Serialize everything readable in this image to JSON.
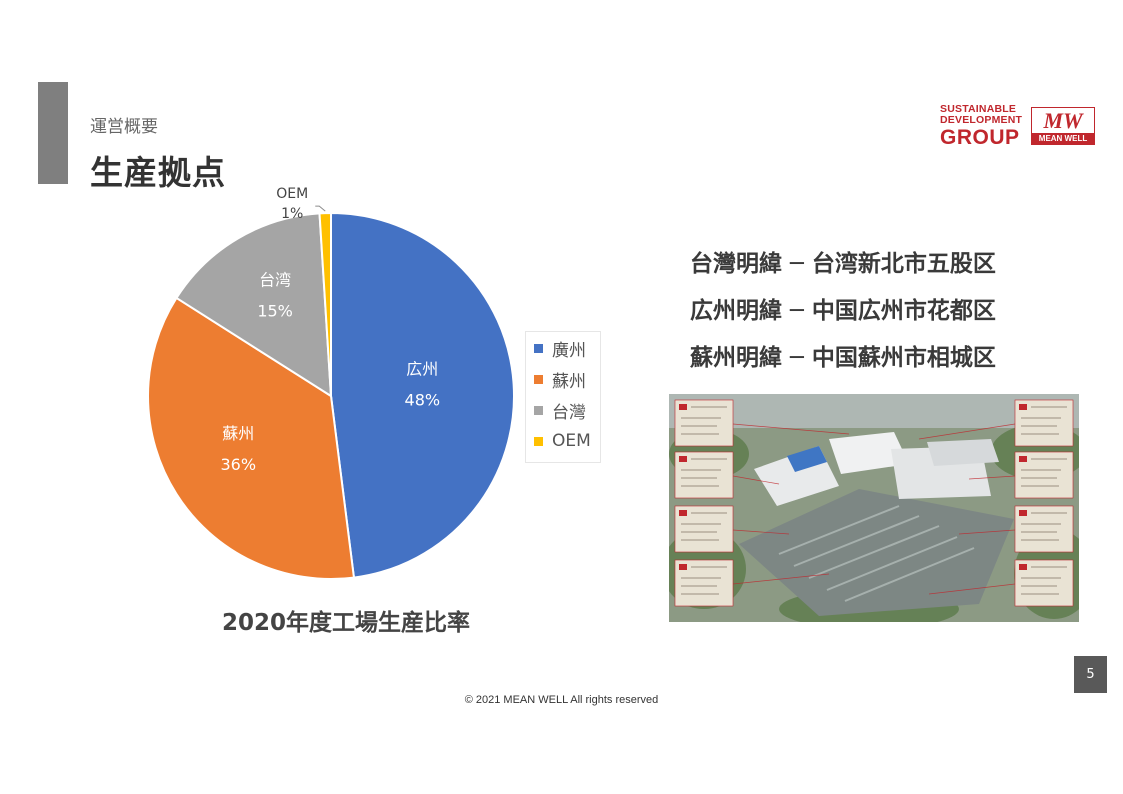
{
  "header": {
    "section_label": "運営概要",
    "title": "生産拠点"
  },
  "logos": {
    "sdg_line1": "SUSTAINABLE",
    "sdg_line2": "DEVELOPMENT",
    "sdg_group": "GROUP",
    "brand_mark": "MW",
    "brand_name": "MEAN WELL"
  },
  "chart_data": {
    "type": "pie",
    "title": "2020年度工場生産比率",
    "slices": [
      {
        "name": "広州",
        "value": 48,
        "label": "48%",
        "legend": "廣州",
        "color": "#4472c4"
      },
      {
        "name": "蘇州",
        "value": 36,
        "label": "36%",
        "legend": "蘇州",
        "color": "#ed7d31"
      },
      {
        "name": "台湾",
        "value": 15,
        "label": "15%",
        "legend": "台灣",
        "color": "#a5a5a5"
      },
      {
        "name": "OEM",
        "value": 1,
        "label": "1%",
        "legend": "OEM",
        "color": "#ffc000"
      }
    ],
    "legend_position": "right"
  },
  "locations": [
    "台灣明緯 ─ 台湾新北市五股区",
    "広州明緯 ─ 中国広州市花都区",
    "蘇州明緯 ─ 中国蘇州市相城区"
  ],
  "page_number": "5",
  "footer": "© 2021 MEAN WELL All rights reserved"
}
